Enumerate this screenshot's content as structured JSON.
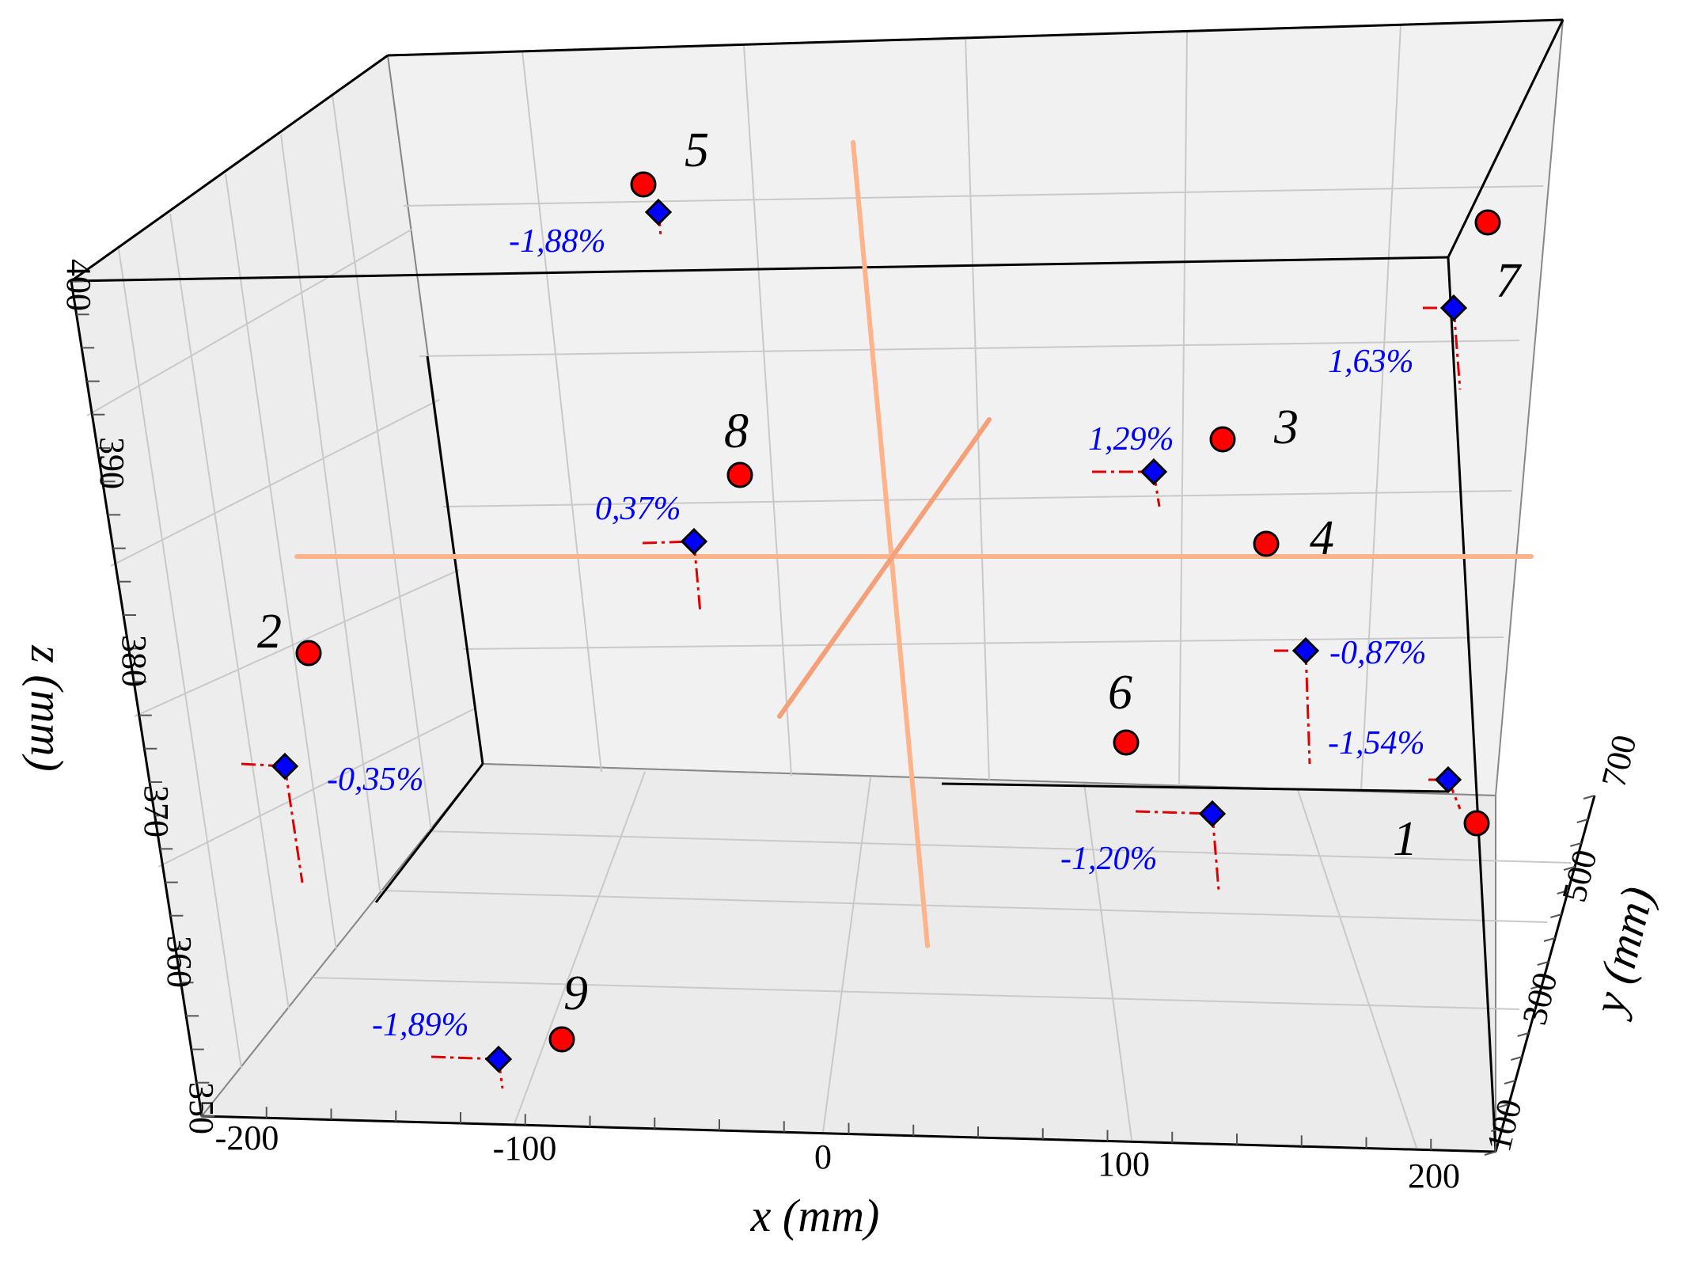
{
  "chart_data": {
    "type": "scatter",
    "xlabel": "x (mm)",
    "ylabel": "y (mm)",
    "zlabel": "z (mm)",
    "x_ticks": [
      "-200",
      "-100",
      "0",
      "100",
      "200"
    ],
    "y_ticks": [
      "100",
      "300",
      "500",
      "700"
    ],
    "z_ticks": [
      "350",
      "360",
      "370",
      "380",
      "390",
      "400"
    ],
    "xlim": [
      -200,
      200
    ],
    "ylim": [
      100,
      700
    ],
    "zlim": [
      350,
      400
    ],
    "grid": true,
    "colors": {
      "circle": "#ff0000",
      "diamond": "#0000ff",
      "error_line": "#e00000",
      "percent_text": "#0000ff",
      "cross": "#ffb38a",
      "pane": "#efefef"
    },
    "points": [
      {
        "label": "1",
        "percent": "-1,54%"
      },
      {
        "label": "2",
        "percent": "-0,35%"
      },
      {
        "label": "3",
        "percent": "1,29%"
      },
      {
        "label": "4",
        "percent": "-0,87%"
      },
      {
        "label": "5",
        "percent": "-1,88%"
      },
      {
        "label": "6",
        "percent": "-1,20%"
      },
      {
        "label": "7",
        "percent": "1,63%"
      },
      {
        "label": "8",
        "percent": "0,37%"
      },
      {
        "label": "9",
        "percent": "-1,89%"
      }
    ]
  }
}
